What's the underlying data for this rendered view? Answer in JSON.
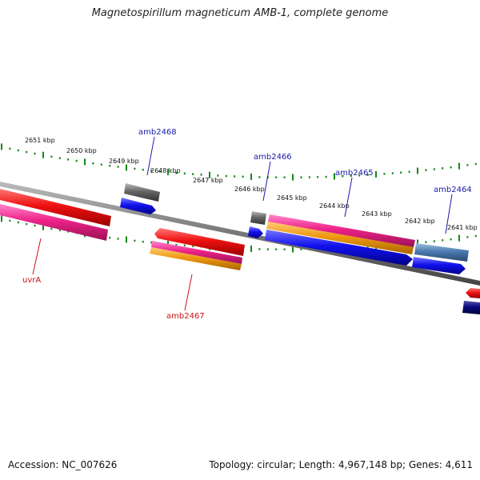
{
  "title": "Magnetospirillum magneticum AMB-1, complete genome",
  "footer": {
    "accession": "Accession: NC_007626",
    "stats": "Topology: circular; Length: 4,967,148 bp; Genes: 4,611"
  },
  "ticks": [
    "2651 kbp",
    "2650 kbp",
    "2649 kbp",
    "2648 kbp",
    "2647 kbp",
    "2646 kbp",
    "2645 kbp",
    "2644 kbp",
    "2643 kbp",
    "2642 kbp",
    "2641 kbp"
  ],
  "genes": [
    {
      "name": "amb2468",
      "color": "#1a1aa8"
    },
    {
      "name": "amb2466",
      "color": "#1a1aa8"
    },
    {
      "name": "amb2465",
      "color": "#1a1aa8"
    },
    {
      "name": "amb2464",
      "color": "#1a1aa8"
    },
    {
      "name": "uvrA",
      "color": "#cc1111"
    },
    {
      "name": "amb2467",
      "color": "#cc1111"
    }
  ],
  "colors": {
    "backbone": "#777777",
    "tick_dots": "#118811",
    "cds_red": "#ee1111",
    "cds_pink": "#ee2288",
    "cds_orange": "#ee9911",
    "cds_blue": "#1111ee",
    "cds_steel": "#4a7ab0",
    "cds_navy": "#0a0a80",
    "cds_gray": "#666666"
  }
}
